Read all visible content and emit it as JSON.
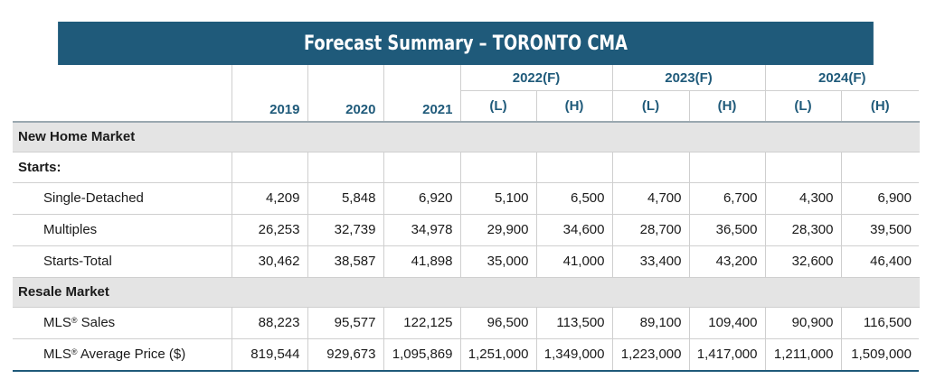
{
  "title": "Forecast Summary – TORONTO CMA",
  "columns": {
    "groups": [
      {
        "label": "2022(F)"
      },
      {
        "label": "2023(F)"
      },
      {
        "label": "2024(F)"
      }
    ],
    "years": [
      "2019",
      "2020",
      "2021"
    ],
    "bounds": [
      "(L)",
      "(H)",
      "(L)",
      "(H)",
      "(L)",
      "(H)"
    ]
  },
  "sections": {
    "new_home": {
      "label": "New Home Market",
      "starts_label": "Starts:",
      "rows": [
        {
          "label": "Single-Detached",
          "values": [
            "4,209",
            "5,848",
            "6,920",
            "5,100",
            "6,500",
            "4,700",
            "6,700",
            "4,300",
            "6,900"
          ]
        },
        {
          "label": "Multiples",
          "values": [
            "26,253",
            "32,739",
            "34,978",
            "29,900",
            "34,600",
            "28,700",
            "36,500",
            "28,300",
            "39,500"
          ]
        },
        {
          "label": "Starts-Total",
          "values": [
            "30,462",
            "38,587",
            "41,898",
            "35,000",
            "41,000",
            "33,400",
            "43,200",
            "32,600",
            "46,400"
          ]
        }
      ]
    },
    "resale": {
      "label": "Resale Market",
      "rows": [
        {
          "label_prefix": "MLS",
          "label_sup": "®",
          "label_suffix": " Sales",
          "values": [
            "88,223",
            "95,577",
            "122,125",
            "96,500",
            "113,500",
            "89,100",
            "109,400",
            "90,900",
            "116,500"
          ]
        },
        {
          "label_prefix": "MLS",
          "label_sup": "®",
          "label_suffix": " Average Price ($)",
          "values": [
            "819,544",
            "929,673",
            "1,095,869",
            "1,251,000",
            "1,349,000",
            "1,223,000",
            "1,417,000",
            "1,211,000",
            "1,509,000"
          ]
        }
      ]
    }
  }
}
